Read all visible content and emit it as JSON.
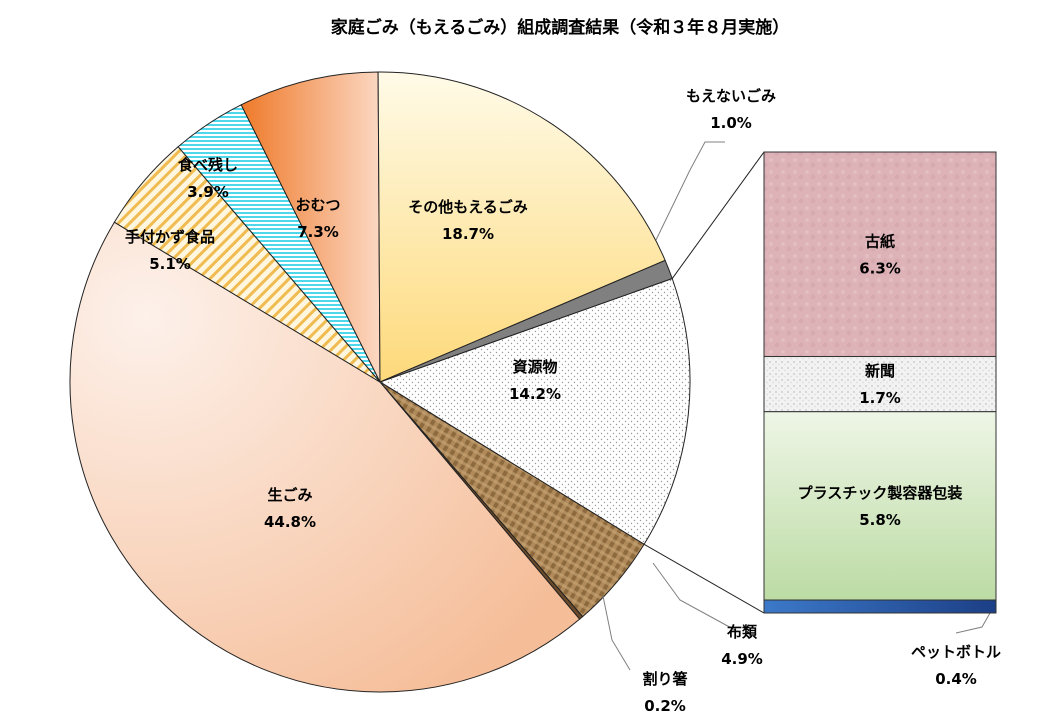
{
  "chart_data": {
    "type": "pie",
    "title": "家庭ごみ（もえるごみ）組成調査結果（令和３年８月実施）",
    "slices": [
      {
        "name": "資源物",
        "value": 14.2,
        "value_label": "14.2%",
        "color": "#ffffff"
      },
      {
        "name": "布類",
        "value": 4.9,
        "value_label": "4.9%",
        "color": "#a88455"
      },
      {
        "name": "割り箸",
        "value": 0.2,
        "value_label": "0.2%",
        "color": "#6b4a2a"
      },
      {
        "name": "生ごみ",
        "value": 44.8,
        "value_label": "44.8%",
        "color": "#f5bd98"
      },
      {
        "name": "手付かず食品",
        "value": 5.1,
        "value_label": "5.1%",
        "color": "#f3c45c"
      },
      {
        "name": "食べ残し",
        "value": 3.9,
        "value_label": "3.9%",
        "color": "#4fd8ec"
      },
      {
        "name": "おむつ",
        "value": 7.3,
        "value_label": "7.3%",
        "color": "#f0883a"
      },
      {
        "name": "その他もえるごみ",
        "value": 18.7,
        "value_label": "18.7%",
        "color": "#fde08a"
      },
      {
        "name": "もえないごみ",
        "value": 1.0,
        "value_label": "1.0%",
        "color": "#808080"
      }
    ],
    "breakdown": {
      "of": "資源物",
      "segments": [
        {
          "name": "古紙",
          "value": 6.3,
          "value_label": "6.3%",
          "color": "#e0b8bd"
        },
        {
          "name": "新聞",
          "value": 1.7,
          "value_label": "1.7%",
          "color": "#e4e4e4"
        },
        {
          "name": "プラスチック製容器包装",
          "value": 5.8,
          "value_label": "5.8%",
          "color": "#c5e0b0"
        },
        {
          "name": "ペットボトル",
          "value": 0.4,
          "value_label": "0.4%",
          "color": "#2e5fae"
        }
      ]
    }
  }
}
